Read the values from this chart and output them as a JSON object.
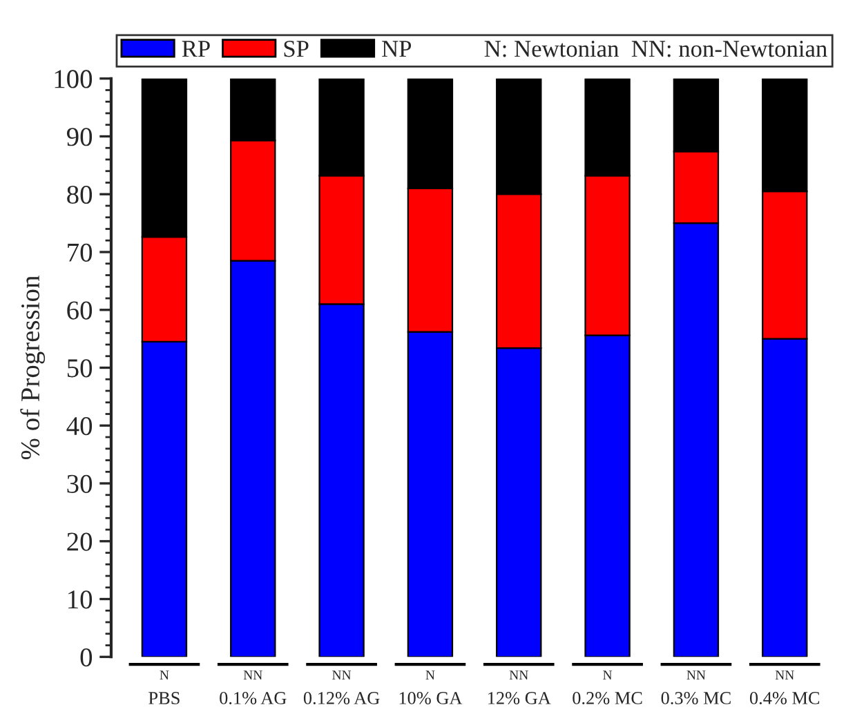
{
  "chart_data": {
    "type": "bar",
    "stacked": true,
    "ylabel": "% of Progression",
    "categories": [
      "PBS",
      "0.1% AG",
      "0.12% AG",
      "10% GA",
      "12% GA",
      "0.2% MC",
      "0.3% MC",
      "0.4% MC"
    ],
    "series": [
      {
        "name": "RP",
        "color": "#0000ff",
        "values": [
          54.5,
          68.5,
          61,
          56.2,
          53.4,
          55.6,
          75,
          55
        ]
      },
      {
        "name": "SP",
        "color": "#ff0000",
        "values": [
          18.1,
          20.8,
          22.2,
          24.8,
          26.6,
          27.6,
          12.4,
          25.5
        ]
      },
      {
        "name": "NP",
        "color": "#000000",
        "values": [
          27.4,
          10.7,
          16.8,
          19,
          20,
          16.8,
          12.6,
          19.5
        ]
      }
    ],
    "ylim": [
      0,
      100
    ],
    "yticks": [
      0,
      10,
      20,
      30,
      40,
      50,
      60,
      70,
      80,
      90,
      100
    ],
    "grid": false,
    "legend": "top",
    "annotations": [
      "N: Newtonian  NN: non-Newtonian",
      "N",
      "NN",
      "NN",
      "N",
      "NN",
      "N",
      "NN",
      "NN"
    ]
  }
}
